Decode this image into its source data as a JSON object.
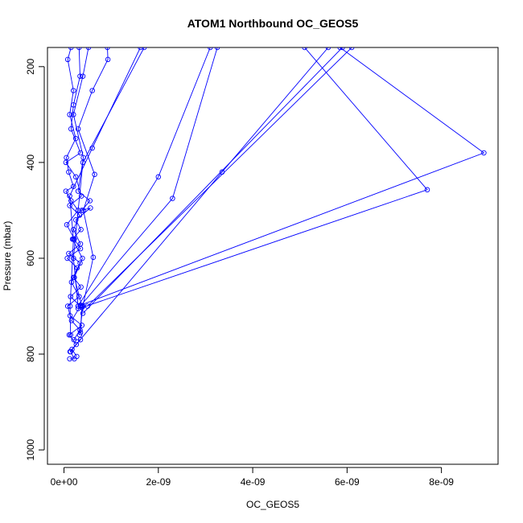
{
  "chart_data": {
    "type": "line",
    "title": "ATOM1 Northbound OC_GEOS5",
    "xlabel": "OC_GEOS5",
    "ylabel": "Pressure (mbar)",
    "xlim": [
      -3.5e-10,
      9.2e-09
    ],
    "ylim": [
      1030,
      160
    ],
    "y_reversed": true,
    "x_ticks": [
      0,
      2e-09,
      4e-09,
      6e-09,
      8e-09
    ],
    "x_tick_labels": [
      "0e+00",
      "2e-09",
      "4e-09",
      "6e-09",
      "8e-09"
    ],
    "y_ticks": [
      200,
      400,
      600,
      800,
      1000
    ],
    "y_tick_labels": [
      "200",
      "400",
      "600",
      "800",
      "1000"
    ],
    "grid": false,
    "series_color": "#0000ff",
    "marker": "open-circle",
    "series": [
      {
        "values": [
          [
            1.5e-10,
            160
          ],
          [
            8e-11,
            185
          ],
          [
            2e-10,
            250
          ],
          [
            1.2e-10,
            300
          ],
          [
            2.5e-10,
            350
          ],
          [
            5e-11,
            390
          ],
          [
            1e-10,
            420
          ],
          [
            2e-10,
            450
          ],
          [
            4e-11,
            460
          ],
          [
            1.5e-10,
            480
          ],
          [
            3e-10,
            500
          ],
          [
            6e-11,
            530
          ],
          [
            2.2e-10,
            560
          ],
          [
            3.5e-10,
            580
          ],
          [
            7e-11,
            600
          ],
          [
            2.8e-10,
            620
          ],
          [
            1.6e-10,
            650
          ],
          [
            3.2e-10,
            680
          ],
          [
            8e-11,
            700
          ],
          [
            1.3e-10,
            720
          ],
          [
            3.8e-10,
            740
          ],
          [
            1.1e-10,
            760
          ],
          [
            2.6e-10,
            780
          ],
          [
            1.4e-10,
            795
          ],
          [
            2.2e-10,
            810
          ],
          [
            1.2e-10,
            810
          ]
        ]
      },
      {
        "values": [
          [
            3.2e-10,
            160
          ],
          [
            3.4e-10,
            220
          ],
          [
            2e-10,
            280
          ],
          [
            1.5e-10,
            330
          ],
          [
            3.5e-10,
            380
          ],
          [
            4e-11,
            400
          ],
          [
            2.5e-10,
            430
          ],
          [
            3.7e-10,
            470
          ],
          [
            1.2e-10,
            490
          ],
          [
            3.3e-10,
            510
          ],
          [
            2e-10,
            540
          ],
          [
            3.5e-10,
            570
          ],
          [
            1e-10,
            590
          ],
          [
            3.4e-10,
            610
          ],
          [
            2e-10,
            640
          ],
          [
            3.6e-10,
            660
          ],
          [
            1.4e-10,
            680
          ],
          [
            3.5e-10,
            700
          ],
          [
            1.6e-10,
            730
          ],
          [
            3.4e-10,
            750
          ],
          [
            2.1e-10,
            770
          ],
          [
            3.5e-10,
            770
          ],
          [
            1.7e-10,
            790
          ],
          [
            2.7e-10,
            805
          ]
        ]
      },
      {
        "values": [
          [
            5.2e-10,
            160
          ],
          [
            4e-10,
            220
          ],
          [
            2e-10,
            300
          ],
          [
            4.1e-10,
            390
          ],
          [
            3e-10,
            460
          ],
          [
            5.5e-10,
            480
          ],
          [
            3.8e-10,
            500
          ],
          [
            5.6e-10,
            495
          ],
          [
            2.5e-10,
            520
          ],
          [
            3.6e-10,
            540
          ],
          [
            1.8e-10,
            560
          ],
          [
            3.9e-10,
            600
          ],
          [
            2.2e-10,
            640
          ],
          [
            3.8e-10,
            700
          ],
          [
            3.5e-10,
            755
          ]
        ]
      },
      {
        "values": [
          [
            9.2e-10,
            160
          ],
          [
            9.3e-10,
            185
          ],
          [
            6e-10,
            250
          ],
          [
            3e-10,
            330
          ],
          [
            6.5e-10,
            425
          ],
          [
            4.1e-10,
            500
          ],
          [
            6.2e-10,
            598
          ],
          [
            4e-10,
            700
          ],
          [
            3.3e-10,
            760
          ]
        ]
      },
      {
        "values": [
          [
            1.62e-09,
            160
          ],
          [
            6e-10,
            370
          ],
          [
            1.2e-10,
            470
          ],
          [
            2e-10,
            560
          ],
          [
            1.3e-10,
            700
          ],
          [
            1.4e-10,
            760
          ]
        ]
      },
      {
        "values": [
          [
            1.7e-09,
            160
          ],
          [
            4e-10,
            400
          ],
          [
            2e-10,
            600
          ],
          [
            3e-10,
            700
          ]
        ]
      },
      {
        "values": [
          [
            3.1e-09,
            160
          ],
          [
            2e-09,
            430
          ],
          [
            3e-10,
            700
          ]
        ]
      },
      {
        "values": [
          [
            3.25e-09,
            160
          ],
          [
            2.3e-09,
            475
          ],
          [
            3e-10,
            705
          ]
        ]
      },
      {
        "values": [
          [
            5.6e-09,
            160
          ],
          [
            3.35e-09,
            420
          ],
          [
            1.3e-10,
            795
          ]
        ]
      },
      {
        "values": [
          [
            5.9e-09,
            160
          ],
          [
            4e-10,
            715
          ]
        ]
      },
      {
        "values": [
          [
            5.1e-09,
            160
          ],
          [
            7.7e-09,
            457
          ],
          [
            3.8e-10,
            703
          ]
        ]
      },
      {
        "values": [
          [
            5.85e-09,
            160
          ],
          [
            8.9e-09,
            380
          ],
          [
            3.5e-10,
            698
          ]
        ]
      },
      {
        "values": [
          [
            6.1e-09,
            160
          ],
          [
            5e-10,
            700
          ]
        ]
      }
    ]
  }
}
